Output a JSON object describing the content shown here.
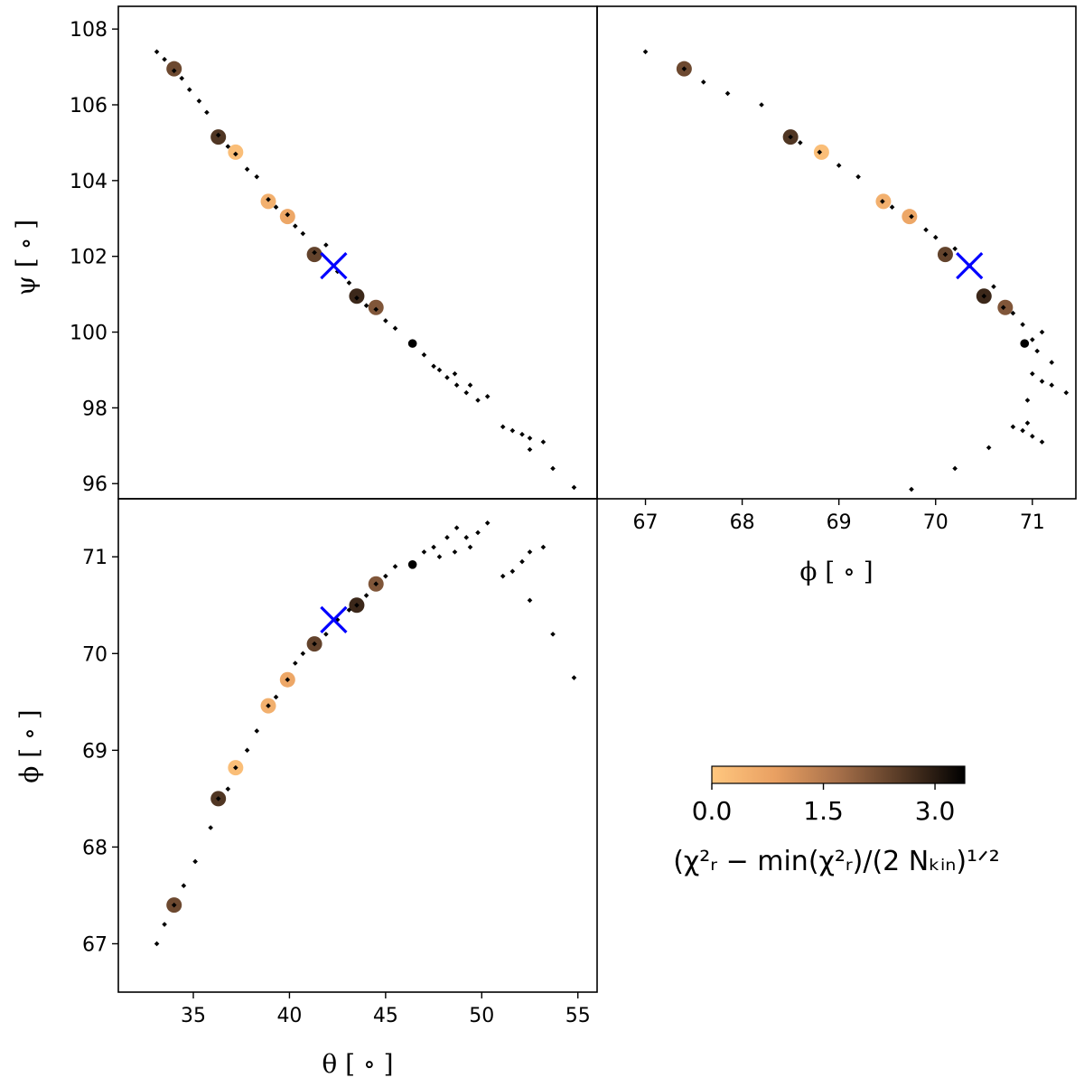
{
  "chart_data": [
    {
      "panel": "psi-vs-theta",
      "type": "scatter",
      "xlabel": "",
      "ylabel": "ψ [ ∘ ]",
      "xlim": [
        31.1,
        56.0
      ],
      "ylim": [
        95.6,
        108.6
      ],
      "yticks": [
        96,
        98,
        100,
        102,
        104,
        106,
        108
      ],
      "ytick_labels": [
        "96",
        "98",
        "100",
        "102",
        "104",
        "106",
        "108"
      ],
      "grid_points": [
        [
          33.1,
          107.4
        ],
        [
          33.5,
          107.2
        ],
        [
          34.0,
          106.9
        ],
        [
          34.4,
          106.7
        ],
        [
          34.8,
          106.4
        ],
        [
          35.3,
          106.1
        ],
        [
          35.7,
          105.8
        ],
        [
          36.3,
          105.2
        ],
        [
          36.8,
          104.9
        ],
        [
          37.2,
          104.7
        ],
        [
          37.8,
          104.3
        ],
        [
          38.3,
          104.1
        ],
        [
          38.9,
          103.5
        ],
        [
          39.3,
          103.3
        ],
        [
          39.9,
          103.1
        ],
        [
          40.3,
          102.8
        ],
        [
          40.7,
          102.6
        ],
        [
          41.3,
          102.1
        ],
        [
          41.9,
          102.3
        ],
        [
          42.5,
          101.6
        ],
        [
          43.1,
          101.3
        ],
        [
          43.5,
          100.9
        ],
        [
          44.0,
          100.7
        ],
        [
          44.5,
          100.6
        ],
        [
          45.0,
          100.3
        ],
        [
          45.5,
          100.1
        ],
        [
          46.4,
          99.7
        ],
        [
          47.0,
          99.4
        ],
        [
          47.5,
          99.1
        ],
        [
          48.2,
          98.8
        ],
        [
          48.7,
          98.6
        ],
        [
          49.2,
          98.4
        ],
        [
          49.8,
          98.2
        ],
        [
          50.3,
          98.3
        ],
        [
          47.8,
          99.0
        ],
        [
          48.6,
          98.9
        ],
        [
          49.4,
          98.6
        ],
        [
          51.1,
          97.5
        ],
        [
          51.6,
          97.4
        ],
        [
          52.1,
          97.3
        ],
        [
          52.5,
          97.2
        ],
        [
          52.5,
          96.9
        ],
        [
          53.2,
          97.1
        ],
        [
          53.7,
          96.4
        ],
        [
          54.8,
          95.9
        ]
      ],
      "colored_points": [
        {
          "x": 34.0,
          "y": 106.95,
          "c": 2.3
        },
        {
          "x": 36.3,
          "y": 105.15,
          "c": 2.6
        },
        {
          "x": 37.2,
          "y": 104.75,
          "c": 0.2
        },
        {
          "x": 38.9,
          "y": 103.45,
          "c": 0.5
        },
        {
          "x": 39.9,
          "y": 103.05,
          "c": 0.7
        },
        {
          "x": 41.3,
          "y": 102.05,
          "c": 2.4
        },
        {
          "x": 43.5,
          "y": 100.95,
          "c": 2.8
        },
        {
          "x": 44.5,
          "y": 100.65,
          "c": 2.1
        },
        {
          "x": 46.4,
          "y": 99.7,
          "c": 3.5
        }
      ],
      "best_fit": {
        "x": 42.3,
        "y": 101.75
      }
    },
    {
      "panel": "psi-vs-phi",
      "type": "scatter",
      "xlabel": "ϕ [ ∘ ]",
      "ylabel": "",
      "xlim": [
        66.5,
        71.45
      ],
      "ylim": [
        95.6,
        108.6
      ],
      "xticks": [
        67,
        68,
        69,
        70,
        71
      ],
      "xtick_labels": [
        "67",
        "68",
        "69",
        "70",
        "71"
      ],
      "grid_points": [
        [
          67.0,
          107.4
        ],
        [
          67.4,
          106.95
        ],
        [
          67.6,
          106.6
        ],
        [
          67.85,
          106.3
        ],
        [
          68.2,
          106.0
        ],
        [
          68.5,
          105.15
        ],
        [
          68.6,
          105.0
        ],
        [
          68.8,
          104.75
        ],
        [
          69.0,
          104.4
        ],
        [
          69.2,
          104.1
        ],
        [
          69.45,
          103.45
        ],
        [
          69.55,
          103.3
        ],
        [
          69.75,
          103.05
        ],
        [
          69.9,
          102.7
        ],
        [
          70.0,
          102.5
        ],
        [
          70.1,
          102.05
        ],
        [
          70.2,
          102.2
        ],
        [
          70.35,
          101.75
        ],
        [
          70.5,
          100.95
        ],
        [
          70.6,
          101.2
        ],
        [
          70.7,
          100.65
        ],
        [
          70.8,
          100.5
        ],
        [
          70.9,
          100.2
        ],
        [
          71.1,
          100.0
        ],
        [
          71.0,
          99.8
        ],
        [
          71.05,
          99.5
        ],
        [
          71.2,
          99.2
        ],
        [
          71.35,
          98.4
        ],
        [
          71.1,
          98.7
        ],
        [
          71.2,
          98.6
        ],
        [
          71.0,
          98.9
        ],
        [
          70.95,
          98.2
        ],
        [
          70.95,
          97.6
        ],
        [
          70.8,
          97.5
        ],
        [
          70.9,
          97.4
        ],
        [
          71.0,
          97.25
        ],
        [
          71.1,
          97.1
        ],
        [
          70.55,
          96.95
        ],
        [
          70.2,
          96.4
        ],
        [
          69.75,
          95.85
        ]
      ],
      "colored_points": [
        {
          "x": 67.4,
          "y": 106.95,
          "c": 2.3
        },
        {
          "x": 68.5,
          "y": 105.15,
          "c": 2.6
        },
        {
          "x": 68.82,
          "y": 104.75,
          "c": 0.2
        },
        {
          "x": 69.46,
          "y": 103.45,
          "c": 0.5
        },
        {
          "x": 69.73,
          "y": 103.05,
          "c": 0.7
        },
        {
          "x": 70.1,
          "y": 102.05,
          "c": 2.4
        },
        {
          "x": 70.5,
          "y": 100.95,
          "c": 2.8
        },
        {
          "x": 70.72,
          "y": 100.65,
          "c": 2.1
        },
        {
          "x": 70.92,
          "y": 99.7,
          "c": 3.5
        }
      ],
      "best_fit": {
        "x": 70.35,
        "y": 101.75
      }
    },
    {
      "panel": "phi-vs-theta",
      "type": "scatter",
      "xlabel": "θ [ ∘ ]",
      "ylabel": "ϕ [ ∘ ]",
      "xlim": [
        31.1,
        56.0
      ],
      "ylim": [
        66.5,
        71.6
      ],
      "xticks": [
        35,
        40,
        45,
        50,
        55
      ],
      "xtick_labels": [
        "35",
        "40",
        "45",
        "50",
        "55"
      ],
      "yticks": [
        67,
        68,
        69,
        70,
        71
      ],
      "ytick_labels": [
        "67",
        "68",
        "69",
        "70",
        "71"
      ],
      "grid_points": [
        [
          33.1,
          67.0
        ],
        [
          33.5,
          67.2
        ],
        [
          34.0,
          67.4
        ],
        [
          34.5,
          67.6
        ],
        [
          35.1,
          67.85
        ],
        [
          35.9,
          68.2
        ],
        [
          36.3,
          68.5
        ],
        [
          36.8,
          68.6
        ],
        [
          37.2,
          68.82
        ],
        [
          37.8,
          69.0
        ],
        [
          38.3,
          69.2
        ],
        [
          38.9,
          69.46
        ],
        [
          39.3,
          69.55
        ],
        [
          39.9,
          69.73
        ],
        [
          40.3,
          69.9
        ],
        [
          40.7,
          70.0
        ],
        [
          41.3,
          70.1
        ],
        [
          41.9,
          70.2
        ],
        [
          42.5,
          70.35
        ],
        [
          43.1,
          70.45
        ],
        [
          43.5,
          70.5
        ],
        [
          44.0,
          70.6
        ],
        [
          44.5,
          70.72
        ],
        [
          45.0,
          70.8
        ],
        [
          45.5,
          70.9
        ],
        [
          46.4,
          70.92
        ],
        [
          47.0,
          71.05
        ],
        [
          47.5,
          71.1
        ],
        [
          48.2,
          71.2
        ],
        [
          48.7,
          71.3
        ],
        [
          49.2,
          71.2
        ],
        [
          49.8,
          71.25
        ],
        [
          50.3,
          71.35
        ],
        [
          47.8,
          71.0
        ],
        [
          48.6,
          71.05
        ],
        [
          49.4,
          71.1
        ],
        [
          51.1,
          70.8
        ],
        [
          51.6,
          70.85
        ],
        [
          52.1,
          70.95
        ],
        [
          52.5,
          71.05
        ],
        [
          53.2,
          71.1
        ],
        [
          52.5,
          70.55
        ],
        [
          53.7,
          70.2
        ],
        [
          54.8,
          69.75
        ]
      ],
      "colored_points": [
        {
          "x": 34.0,
          "y": 67.4,
          "c": 2.3
        },
        {
          "x": 36.3,
          "y": 68.5,
          "c": 2.6
        },
        {
          "x": 37.2,
          "y": 68.82,
          "c": 0.2
        },
        {
          "x": 38.9,
          "y": 69.46,
          "c": 0.5
        },
        {
          "x": 39.9,
          "y": 69.73,
          "c": 0.7
        },
        {
          "x": 41.3,
          "y": 70.1,
          "c": 2.4
        },
        {
          "x": 43.5,
          "y": 70.5,
          "c": 2.8
        },
        {
          "x": 44.5,
          "y": 70.72,
          "c": 2.1
        },
        {
          "x": 46.4,
          "y": 70.92,
          "c": 3.5
        }
      ],
      "best_fit": {
        "x": 42.3,
        "y": 70.35
      }
    }
  ],
  "colorbar": {
    "cmap": "copper_r",
    "range": [
      0.0,
      3.4
    ],
    "ticks": [
      0.0,
      1.5,
      3.0
    ],
    "tick_labels": [
      "0.0",
      "1.5",
      "3.0"
    ],
    "label": "(χ²ᵣ − min(χ²ᵣ)/(2 Nₖᵢₙ)¹ᐟ²",
    "light_color": "#ffc77f",
    "dark_color": "#000000"
  },
  "marker_colors": {
    "grid": "#000000",
    "best_fit": "#0000ff"
  }
}
